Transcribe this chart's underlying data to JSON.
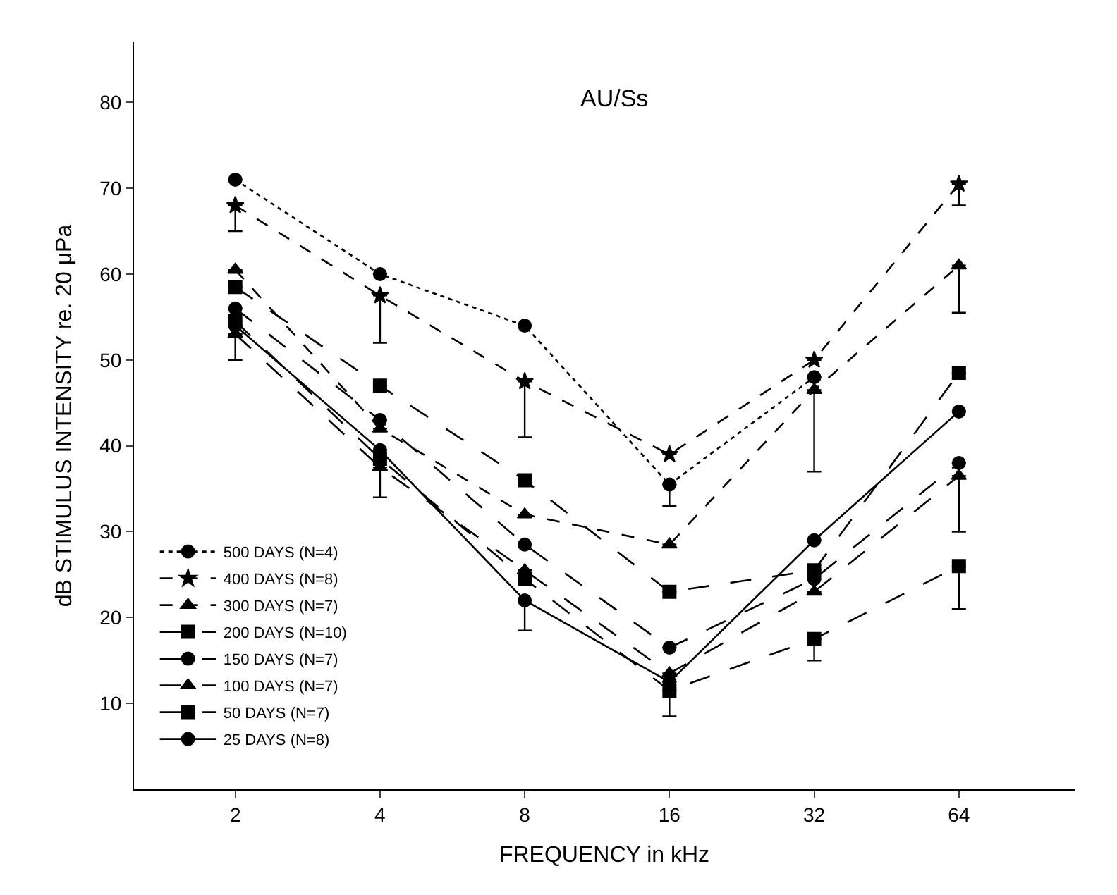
{
  "chart_data": {
    "type": "line",
    "title": "AU/Ss",
    "xlabel": "FREQUENCY in kHz",
    "ylabel": "dB STIMULUS INTENSITY re. 20 μPa",
    "categories": [
      "2",
      "4",
      "8",
      "16",
      "32",
      "64"
    ],
    "ylim": [
      0,
      87
    ],
    "yticks": [
      10,
      20,
      30,
      40,
      50,
      60,
      70,
      80
    ],
    "legend": "bottom left",
    "series": [
      {
        "name": "500 DAYS (N=4)",
        "color": "#000000",
        "marker": "circle",
        "line_style": "dotted",
        "values": [
          71,
          60,
          54,
          35.5,
          48,
          null
        ],
        "errors": [
          null,
          null,
          null,
          [
            33,
            35.5
          ],
          null,
          null
        ]
      },
      {
        "name": "400 DAYS (N=8)",
        "color": "#000000",
        "marker": "star",
        "line_style": "dashed",
        "values": [
          68,
          57.5,
          47.5,
          39,
          50,
          70.5
        ],
        "errors": [
          [
            65,
            68
          ],
          [
            52,
            57.5
          ],
          [
            41,
            47.5
          ],
          null,
          null,
          [
            68,
            70.5
          ]
        ]
      },
      {
        "name": "300 DAYS (N=7)",
        "color": "#000000",
        "marker": "triangle",
        "line_style": "dashed",
        "values": [
          60.5,
          42,
          32,
          28.5,
          46.5,
          61
        ],
        "errors": [
          null,
          null,
          null,
          null,
          [
            37,
            46.5
          ],
          [
            55.5,
            61
          ]
        ]
      },
      {
        "name": "200 DAYS (N=10)",
        "color": "#000000",
        "marker": "square",
        "line_style": "longdash",
        "values": [
          58.5,
          47,
          36,
          23,
          25.5,
          48.5
        ],
        "errors": [
          null,
          null,
          null,
          null,
          null,
          null
        ]
      },
      {
        "name": "150 DAYS (N=7)",
        "color": "#000000",
        "marker": "circle",
        "line_style": "longdash",
        "values": [
          56,
          43,
          28.5,
          16.5,
          24.5,
          38
        ],
        "errors": [
          null,
          null,
          null,
          null,
          null,
          [
            30,
            38
          ]
        ]
      },
      {
        "name": "100 DAYS (N=7)",
        "color": "#000000",
        "marker": "triangle",
        "line_style": "longdash",
        "values": [
          53,
          37.5,
          25.5,
          13.5,
          23,
          36.5
        ],
        "errors": [
          [
            50,
            53
          ],
          [
            34,
            37.5
          ],
          null,
          null,
          null,
          null
        ]
      },
      {
        "name": "50 DAYS (N=7)",
        "color": "#000000",
        "marker": "square",
        "line_style": "longdash",
        "values": [
          54.5,
          38.5,
          24.5,
          11.5,
          17.5,
          26
        ],
        "errors": [
          null,
          null,
          null,
          [
            8.5,
            11.5
          ],
          [
            15,
            17.5
          ],
          [
            21,
            26
          ]
        ]
      },
      {
        "name": "25 DAYS (N=8)",
        "color": "#000000",
        "marker": "circle",
        "line_style": "solid",
        "values": [
          54,
          39.5,
          22,
          12.5,
          29,
          44
        ],
        "errors": [
          null,
          null,
          [
            18.5,
            22
          ],
          null,
          null,
          null
        ]
      }
    ]
  }
}
